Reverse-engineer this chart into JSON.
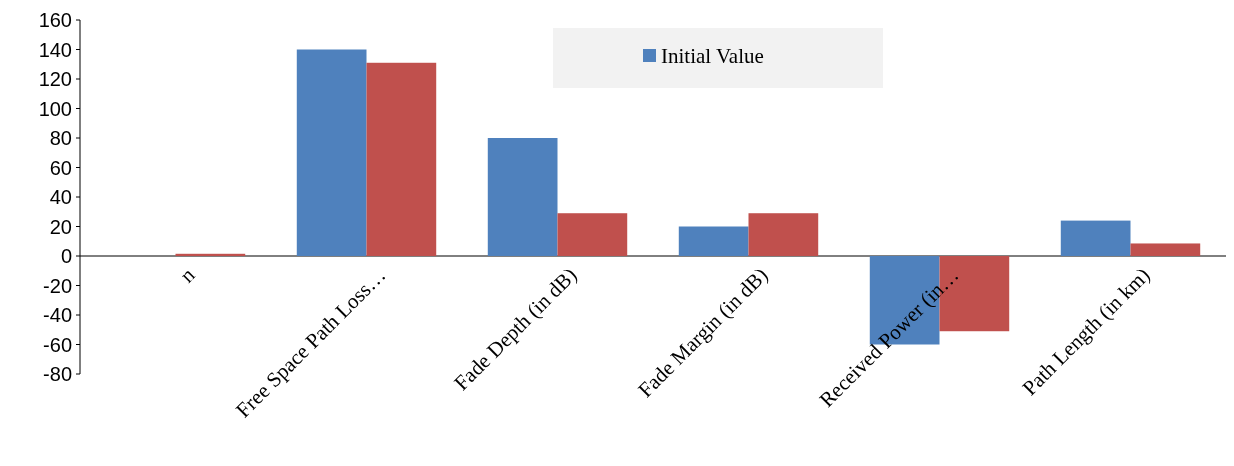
{
  "chart_data": {
    "type": "bar",
    "categories": [
      "n",
      "Free Space Path Loss…",
      "Fade Depth (in dB)",
      "Fade Margin (in dB)",
      "Received  Power (in…",
      "Path Length (in km)"
    ],
    "series": [
      {
        "name": "Initial Value",
        "color": "#4f81bd",
        "values": [
          0,
          140,
          80,
          20,
          -60,
          24
        ]
      },
      {
        "color": "#c0504d",
        "values": [
          1.5,
          131,
          29,
          29,
          -51,
          8.5
        ]
      }
    ],
    "ylim": [
      -80,
      160
    ],
    "yticks": [
      -80,
      -60,
      -40,
      -20,
      0,
      20,
      40,
      60,
      80,
      100,
      120,
      140,
      160
    ],
    "grid": false,
    "legend": "top"
  }
}
